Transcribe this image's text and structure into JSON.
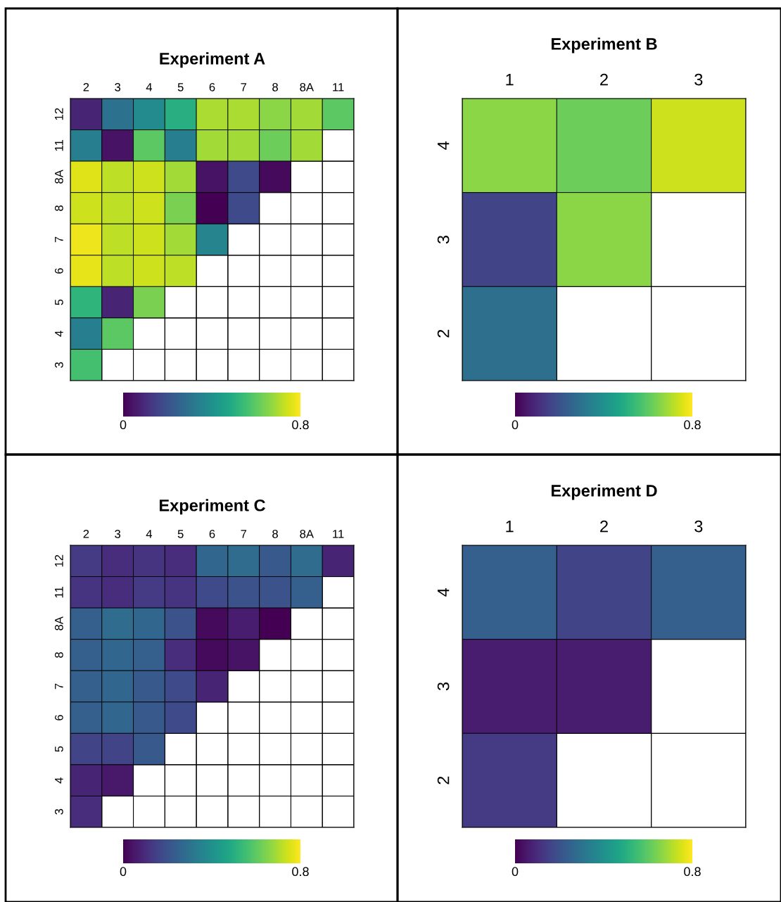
{
  "chart_data": [
    {
      "type": "heatmap",
      "title": "Experiment A",
      "categories": [
        "2",
        "3",
        "4",
        "5",
        "6",
        "7",
        "8",
        "8A",
        "11"
      ],
      "y_categories": [
        "12",
        "11",
        "8A",
        "8",
        "7",
        "6",
        "5",
        "4",
        "3"
      ],
      "cells": [
        [
          0.08,
          0.3,
          0.38,
          0.5,
          0.7,
          0.7,
          0.66,
          0.69,
          0.6
        ],
        [
          0.34,
          0.04,
          0.6,
          0.34,
          0.69,
          0.69,
          0.62,
          0.69,
          null
        ],
        [
          0.76,
          0.72,
          0.74,
          0.69,
          0.04,
          0.18,
          0.02,
          null,
          null
        ],
        [
          0.74,
          0.72,
          0.74,
          0.64,
          0.0,
          0.18,
          null,
          null,
          null
        ],
        [
          0.78,
          0.72,
          0.74,
          0.69,
          0.36,
          null,
          null,
          null,
          null
        ],
        [
          0.77,
          0.72,
          0.74,
          0.72,
          null,
          null,
          null,
          null,
          null
        ],
        [
          0.52,
          0.08,
          0.64,
          null,
          null,
          null,
          null,
          null,
          null
        ],
        [
          0.34,
          0.6,
          null,
          null,
          null,
          null,
          null,
          null,
          null
        ],
        [
          0.56,
          null,
          null,
          null,
          null,
          null,
          null,
          null,
          null
        ]
      ],
      "clim": [
        0,
        0.8
      ],
      "cticks": [
        0,
        0.8
      ],
      "grid": true
    },
    {
      "type": "heatmap",
      "title": "Experiment B",
      "categories": [
        "1",
        "2",
        "3"
      ],
      "y_categories": [
        "4",
        "3",
        "2"
      ],
      "cells": [
        [
          0.66,
          0.62,
          0.74
        ],
        [
          0.16,
          0.66,
          null
        ],
        [
          0.29,
          null,
          null
        ]
      ],
      "clim": [
        0,
        0.8
      ],
      "cticks": [
        0,
        0.8
      ],
      "grid": true
    },
    {
      "type": "heatmap",
      "title": "Experiment C",
      "categories": [
        "2",
        "3",
        "4",
        "5",
        "6",
        "7",
        "8",
        "8A",
        "11"
      ],
      "y_categories": [
        "12",
        "11",
        "8A",
        "8",
        "7",
        "6",
        "5",
        "4",
        "3"
      ],
      "cells": [
        [
          0.14,
          0.1,
          0.12,
          0.1,
          0.26,
          0.28,
          0.22,
          0.28,
          0.08
        ],
        [
          0.12,
          0.1,
          0.14,
          0.12,
          0.18,
          0.2,
          0.2,
          0.24,
          null
        ],
        [
          0.24,
          0.28,
          0.26,
          0.2,
          0.02,
          0.06,
          0.0,
          null,
          null
        ],
        [
          0.24,
          0.26,
          0.24,
          0.1,
          0.02,
          0.04,
          null,
          null,
          null
        ],
        [
          0.24,
          0.26,
          0.22,
          0.18,
          0.08,
          null,
          null,
          null,
          null
        ],
        [
          0.24,
          0.26,
          0.22,
          0.18,
          null,
          null,
          null,
          null,
          null
        ],
        [
          0.16,
          0.16,
          0.22,
          null,
          null,
          null,
          null,
          null,
          null
        ],
        [
          0.08,
          0.05,
          null,
          null,
          null,
          null,
          null,
          null,
          null
        ],
        [
          0.1,
          null,
          null,
          null,
          null,
          null,
          null,
          null,
          null
        ]
      ],
      "clim": [
        0,
        0.8
      ],
      "cticks": [
        0,
        0.8
      ],
      "grid": true
    },
    {
      "type": "heatmap",
      "title": "Experiment D",
      "categories": [
        "1",
        "2",
        "3"
      ],
      "y_categories": [
        "4",
        "3",
        "2"
      ],
      "cells": [
        [
          0.24,
          0.16,
          0.24
        ],
        [
          0.06,
          0.06,
          null
        ],
        [
          0.14,
          null,
          null
        ]
      ],
      "clim": [
        0,
        0.8
      ],
      "cticks": [
        0,
        0.8
      ],
      "grid": true
    }
  ]
}
